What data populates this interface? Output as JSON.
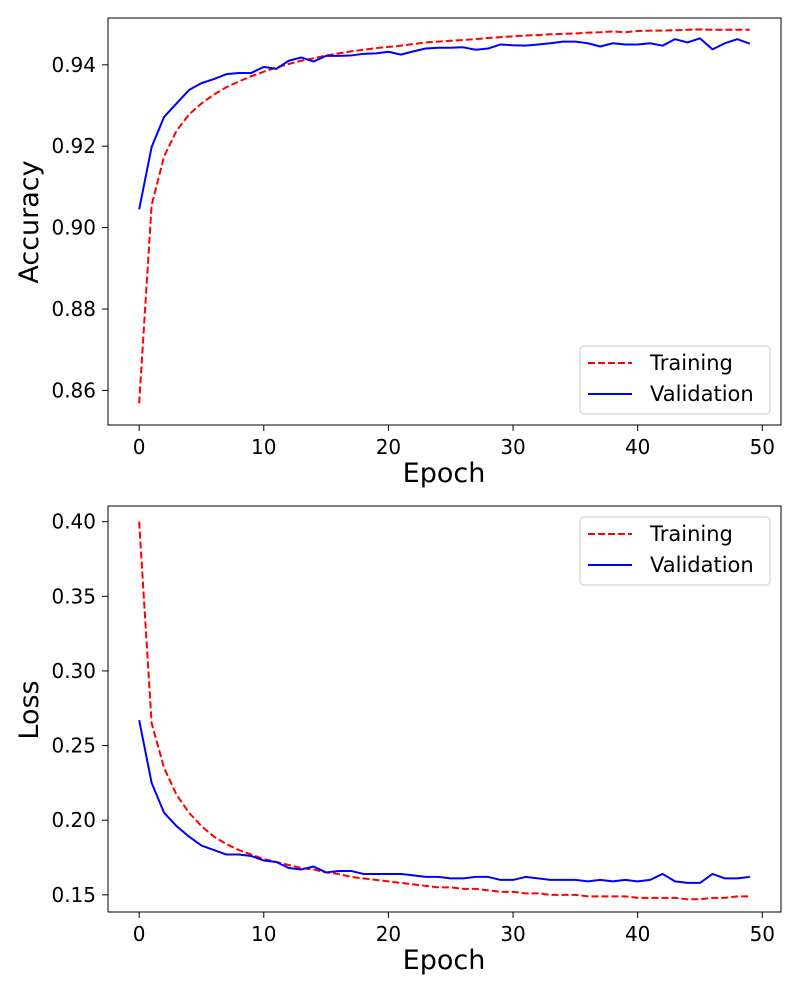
{
  "chart_data": [
    {
      "type": "line",
      "xlabel": "Epoch",
      "ylabel": "Accuracy",
      "xlim": [
        -2.5,
        51.5
      ],
      "ylim": [
        0.8515,
        0.9515
      ],
      "xticks": [
        0,
        10,
        20,
        30,
        40,
        50
      ],
      "xtick_labels": [
        "0",
        "10",
        "20",
        "30",
        "40",
        "50"
      ],
      "yticks": [
        0.86,
        0.88,
        0.9,
        0.92,
        0.94
      ],
      "ytick_labels": [
        "0.86",
        "0.88",
        "0.90",
        "0.92",
        "0.94"
      ],
      "grid": false,
      "legend_position": "lower-right",
      "series": [
        {
          "name": "Training",
          "color": "#ff0000",
          "dash": "dashed",
          "x": [
            0,
            1,
            2,
            3,
            4,
            5,
            6,
            7,
            8,
            9,
            10,
            11,
            12,
            13,
            14,
            15,
            16,
            17,
            18,
            19,
            20,
            21,
            22,
            23,
            24,
            25,
            26,
            27,
            28,
            29,
            30,
            31,
            32,
            33,
            34,
            35,
            36,
            37,
            38,
            39,
            40,
            41,
            42,
            43,
            44,
            45,
            46,
            47,
            48,
            49
          ],
          "values": [
            0.8568,
            0.9055,
            0.9175,
            0.9238,
            0.9278,
            0.9305,
            0.9327,
            0.9345,
            0.9359,
            0.9372,
            0.9383,
            0.9393,
            0.9402,
            0.941,
            0.9416,
            0.9423,
            0.9428,
            0.9433,
            0.9437,
            0.9441,
            0.9444,
            0.9447,
            0.9451,
            0.9455,
            0.9457,
            0.9459,
            0.9461,
            0.9463,
            0.9466,
            0.9468,
            0.947,
            0.9472,
            0.9473,
            0.9475,
            0.9476,
            0.9477,
            0.9479,
            0.948,
            0.9482,
            0.948,
            0.9483,
            0.9484,
            0.9484,
            0.9485,
            0.9486,
            0.9487,
            0.9486,
            0.9486,
            0.9486,
            0.9486
          ]
        },
        {
          "name": "Validation",
          "color": "#0000ff",
          "dash": "solid",
          "x": [
            0,
            1,
            2,
            3,
            4,
            5,
            6,
            7,
            8,
            9,
            10,
            11,
            12,
            13,
            14,
            15,
            16,
            17,
            18,
            19,
            20,
            21,
            22,
            23,
            24,
            25,
            26,
            27,
            28,
            29,
            30,
            31,
            32,
            33,
            34,
            35,
            36,
            37,
            38,
            39,
            40,
            41,
            42,
            43,
            44,
            45,
            46,
            47,
            48,
            49
          ],
          "values": [
            0.9045,
            0.9198,
            0.9272,
            0.9305,
            0.9338,
            0.9355,
            0.9365,
            0.9377,
            0.938,
            0.938,
            0.9395,
            0.939,
            0.941,
            0.9418,
            0.9408,
            0.9422,
            0.9422,
            0.9423,
            0.9427,
            0.9428,
            0.9432,
            0.9425,
            0.9433,
            0.944,
            0.9442,
            0.9442,
            0.9443,
            0.9437,
            0.944,
            0.945,
            0.9448,
            0.9447,
            0.945,
            0.9453,
            0.9457,
            0.9457,
            0.9453,
            0.9445,
            0.9453,
            0.945,
            0.945,
            0.9453,
            0.9447,
            0.9463,
            0.9455,
            0.9465,
            0.9438,
            0.9453,
            0.9463,
            0.9452
          ]
        }
      ]
    },
    {
      "type": "line",
      "xlabel": "Epoch",
      "ylabel": "Loss",
      "xlim": [
        -2.5,
        51.5
      ],
      "ylim": [
        0.1385,
        0.4105
      ],
      "xticks": [
        0,
        10,
        20,
        30,
        40,
        50
      ],
      "xtick_labels": [
        "0",
        "10",
        "20",
        "30",
        "40",
        "50"
      ],
      "yticks": [
        0.15,
        0.2,
        0.25,
        0.3,
        0.35,
        0.4
      ],
      "ytick_labels": [
        "0.15",
        "0.20",
        "0.25",
        "0.30",
        "0.35",
        "0.40"
      ],
      "grid": false,
      "legend_position": "upper-right",
      "series": [
        {
          "name": "Training",
          "color": "#ff0000",
          "dash": "dashed",
          "x": [
            0,
            1,
            2,
            3,
            4,
            5,
            6,
            7,
            8,
            9,
            10,
            11,
            12,
            13,
            14,
            15,
            16,
            17,
            18,
            19,
            20,
            21,
            22,
            23,
            24,
            25,
            26,
            27,
            28,
            29,
            30,
            31,
            32,
            33,
            34,
            35,
            36,
            37,
            38,
            39,
            40,
            41,
            42,
            43,
            44,
            45,
            46,
            47,
            48,
            49
          ],
          "values": [
            0.4,
            0.265,
            0.235,
            0.217,
            0.205,
            0.196,
            0.189,
            0.184,
            0.18,
            0.177,
            0.174,
            0.172,
            0.17,
            0.168,
            0.167,
            0.165,
            0.164,
            0.162,
            0.161,
            0.16,
            0.159,
            0.158,
            0.157,
            0.156,
            0.155,
            0.155,
            0.154,
            0.154,
            0.153,
            0.152,
            0.152,
            0.151,
            0.151,
            0.15,
            0.15,
            0.15,
            0.149,
            0.149,
            0.149,
            0.149,
            0.148,
            0.148,
            0.148,
            0.148,
            0.147,
            0.147,
            0.148,
            0.148,
            0.149,
            0.149
          ]
        },
        {
          "name": "Validation",
          "color": "#0000ff",
          "dash": "solid",
          "x": [
            0,
            1,
            2,
            3,
            4,
            5,
            6,
            7,
            8,
            9,
            10,
            11,
            12,
            13,
            14,
            15,
            16,
            17,
            18,
            19,
            20,
            21,
            22,
            23,
            24,
            25,
            26,
            27,
            28,
            29,
            30,
            31,
            32,
            33,
            34,
            35,
            36,
            37,
            38,
            39,
            40,
            41,
            42,
            43,
            44,
            45,
            46,
            47,
            48,
            49
          ],
          "values": [
            0.267,
            0.225,
            0.205,
            0.196,
            0.189,
            0.183,
            0.18,
            0.177,
            0.177,
            0.176,
            0.173,
            0.172,
            0.168,
            0.167,
            0.169,
            0.165,
            0.166,
            0.166,
            0.164,
            0.164,
            0.164,
            0.164,
            0.163,
            0.162,
            0.162,
            0.161,
            0.161,
            0.162,
            0.162,
            0.16,
            0.16,
            0.162,
            0.161,
            0.16,
            0.16,
            0.16,
            0.159,
            0.16,
            0.159,
            0.16,
            0.159,
            0.16,
            0.164,
            0.159,
            0.158,
            0.158,
            0.164,
            0.161,
            0.161,
            0.162
          ]
        }
      ]
    }
  ]
}
